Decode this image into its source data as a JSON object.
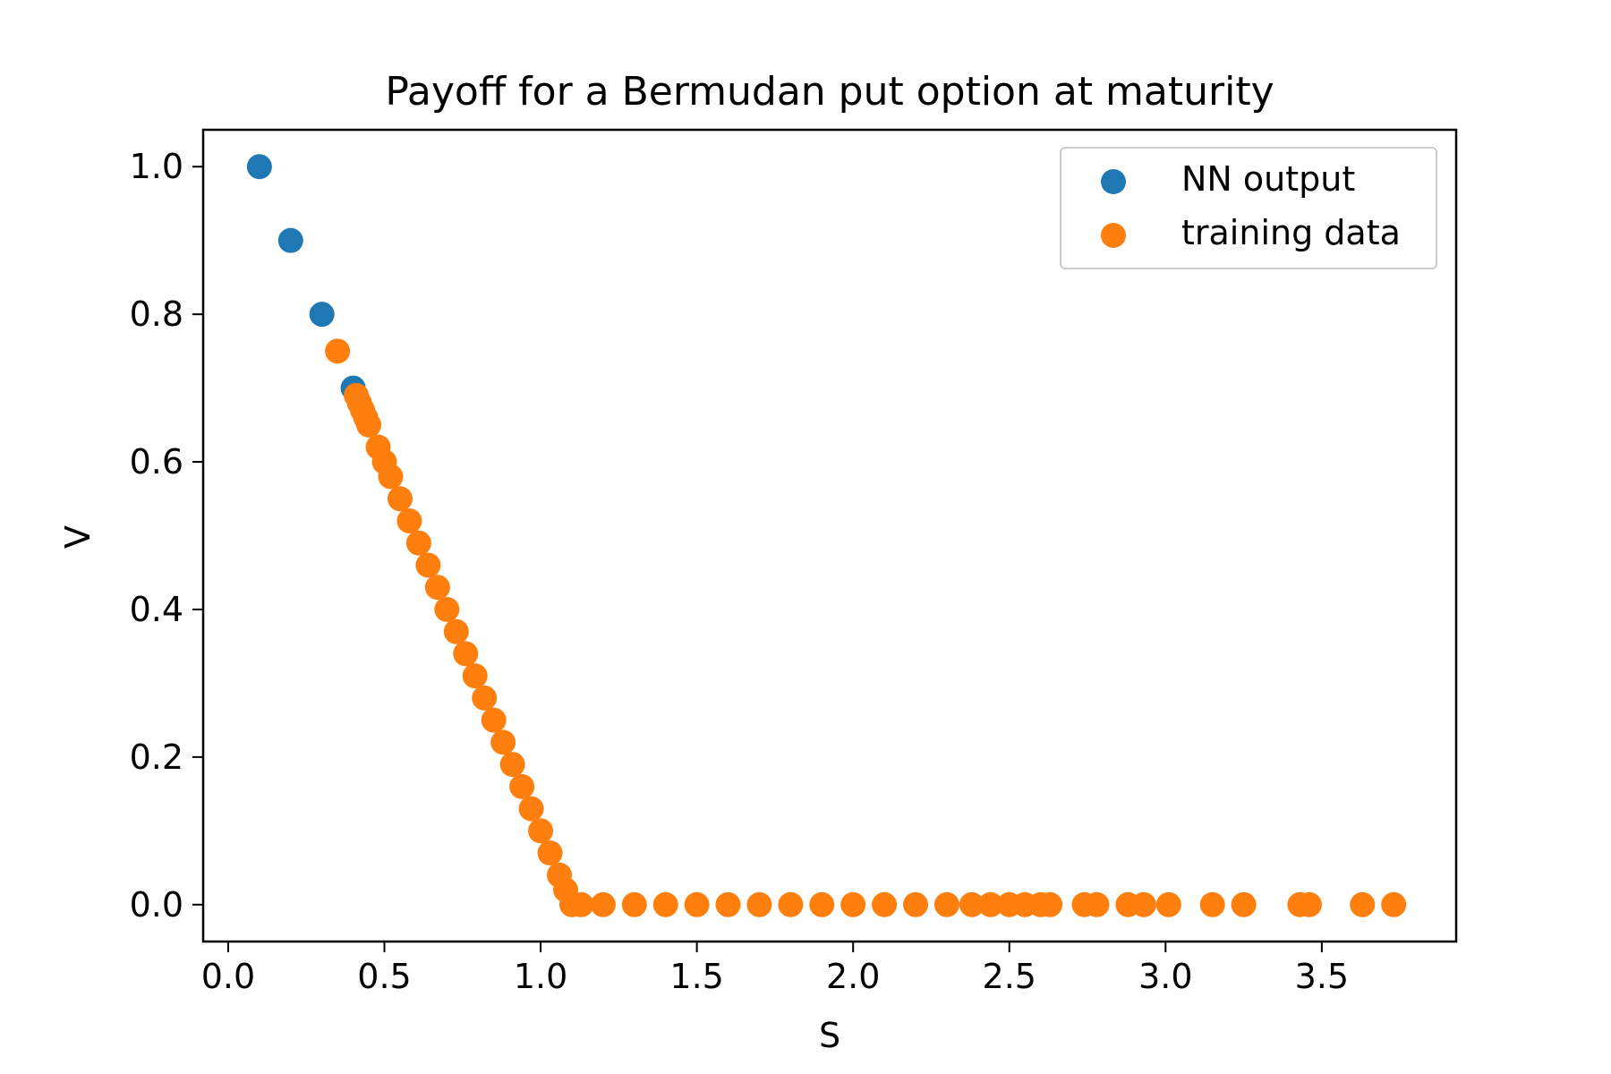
{
  "chart_data": {
    "type": "scatter",
    "title": "Payoff for a Bermudan put option at maturity",
    "xlabel": "S",
    "ylabel": "V",
    "xlim": [
      -0.08,
      3.93
    ],
    "ylim": [
      -0.05,
      1.05
    ],
    "xticks": [
      0.0,
      0.5,
      1.0,
      1.5,
      2.0,
      2.5,
      3.0,
      3.5
    ],
    "xtick_labels": [
      "0.0",
      "0.5",
      "1.0",
      "1.5",
      "2.0",
      "2.5",
      "3.0",
      "3.5"
    ],
    "yticks": [
      0.0,
      0.2,
      0.4,
      0.6,
      0.8,
      1.0
    ],
    "ytick_labels": [
      "0.0",
      "0.2",
      "0.4",
      "0.6",
      "0.8",
      "1.0"
    ],
    "grid": false,
    "legend_position": "top-right",
    "series": [
      {
        "name": "NN output",
        "color": "#1f77b4",
        "points": [
          [
            0.1,
            1.0
          ],
          [
            0.2,
            0.9
          ],
          [
            0.3,
            0.8
          ],
          [
            0.4,
            0.7
          ]
        ]
      },
      {
        "name": "training data",
        "color": "#ff7f0e",
        "points": [
          [
            0.35,
            0.75
          ],
          [
            0.41,
            0.69
          ],
          [
            0.42,
            0.68
          ],
          [
            0.43,
            0.67
          ],
          [
            0.44,
            0.66
          ],
          [
            0.45,
            0.65
          ],
          [
            0.48,
            0.62
          ],
          [
            0.5,
            0.6
          ],
          [
            0.52,
            0.58
          ],
          [
            0.55,
            0.55
          ],
          [
            0.58,
            0.52
          ],
          [
            0.61,
            0.49
          ],
          [
            0.64,
            0.46
          ],
          [
            0.67,
            0.43
          ],
          [
            0.7,
            0.4
          ],
          [
            0.73,
            0.37
          ],
          [
            0.76,
            0.34
          ],
          [
            0.79,
            0.31
          ],
          [
            0.82,
            0.28
          ],
          [
            0.85,
            0.25
          ],
          [
            0.88,
            0.22
          ],
          [
            0.91,
            0.19
          ],
          [
            0.94,
            0.16
          ],
          [
            0.97,
            0.13
          ],
          [
            1.0,
            0.1
          ],
          [
            1.03,
            0.07
          ],
          [
            1.06,
            0.04
          ],
          [
            1.08,
            0.02
          ],
          [
            1.1,
            0.0
          ],
          [
            1.13,
            0.0
          ],
          [
            1.2,
            0.0
          ],
          [
            1.3,
            0.0
          ],
          [
            1.4,
            0.0
          ],
          [
            1.5,
            0.0
          ],
          [
            1.6,
            0.0
          ],
          [
            1.7,
            0.0
          ],
          [
            1.8,
            0.0
          ],
          [
            1.9,
            0.0
          ],
          [
            2.0,
            0.0
          ],
          [
            2.1,
            0.0
          ],
          [
            2.2,
            0.0
          ],
          [
            2.3,
            0.0
          ],
          [
            2.38,
            0.0
          ],
          [
            2.44,
            0.0
          ],
          [
            2.5,
            0.0
          ],
          [
            2.55,
            0.0
          ],
          [
            2.6,
            0.0
          ],
          [
            2.63,
            0.0
          ],
          [
            2.74,
            0.0
          ],
          [
            2.78,
            0.0
          ],
          [
            2.88,
            0.0
          ],
          [
            2.93,
            0.0
          ],
          [
            3.01,
            0.0
          ],
          [
            3.15,
            0.0
          ],
          [
            3.25,
            0.0
          ],
          [
            3.43,
            0.0
          ],
          [
            3.46,
            0.0
          ],
          [
            3.63,
            0.0
          ],
          [
            3.73,
            0.0
          ]
        ]
      }
    ]
  }
}
